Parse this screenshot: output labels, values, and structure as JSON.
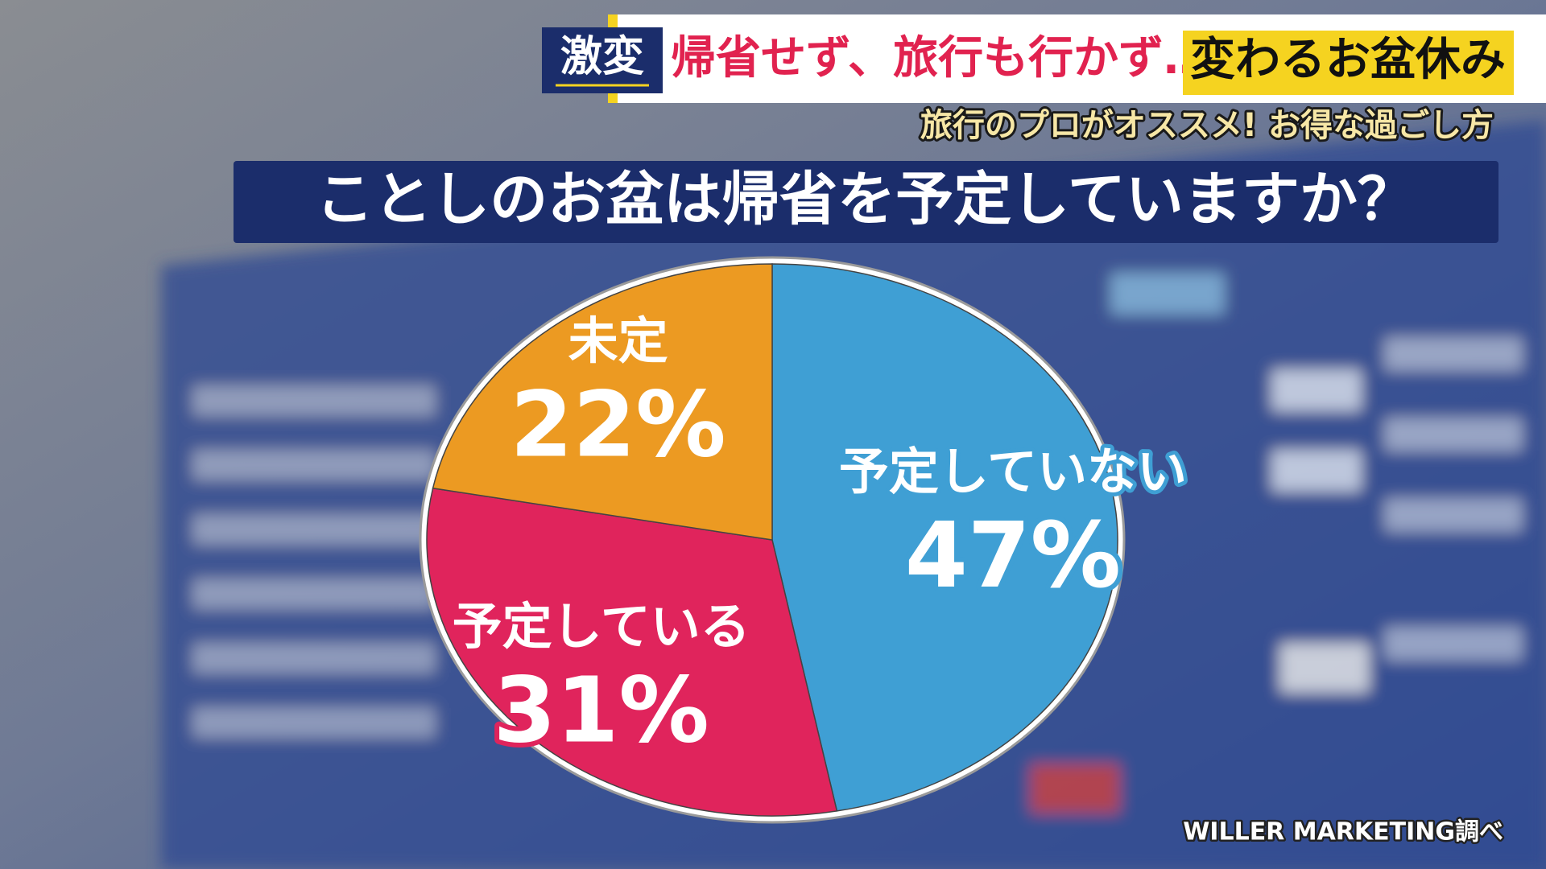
{
  "chart_data": {
    "type": "pie",
    "tag": "激変",
    "headline": "帰省せず、旅行も行かず…",
    "headline_highlight": "変わるお盆休み",
    "subtitle": "旅行のプロがオススメ! お得な過ごし方",
    "title": "ことしのお盆は帰省を予定していますか？",
    "categories": [
      "予定していない",
      "予定している",
      "未定"
    ],
    "values": [
      47,
      31,
      22
    ],
    "value_labels": [
      "47%",
      "31%",
      "22%"
    ],
    "colors": [
      "#3f9fd4",
      "#e0245c",
      "#ec9a22"
    ],
    "source": "WILLER MARKETING調べ"
  }
}
